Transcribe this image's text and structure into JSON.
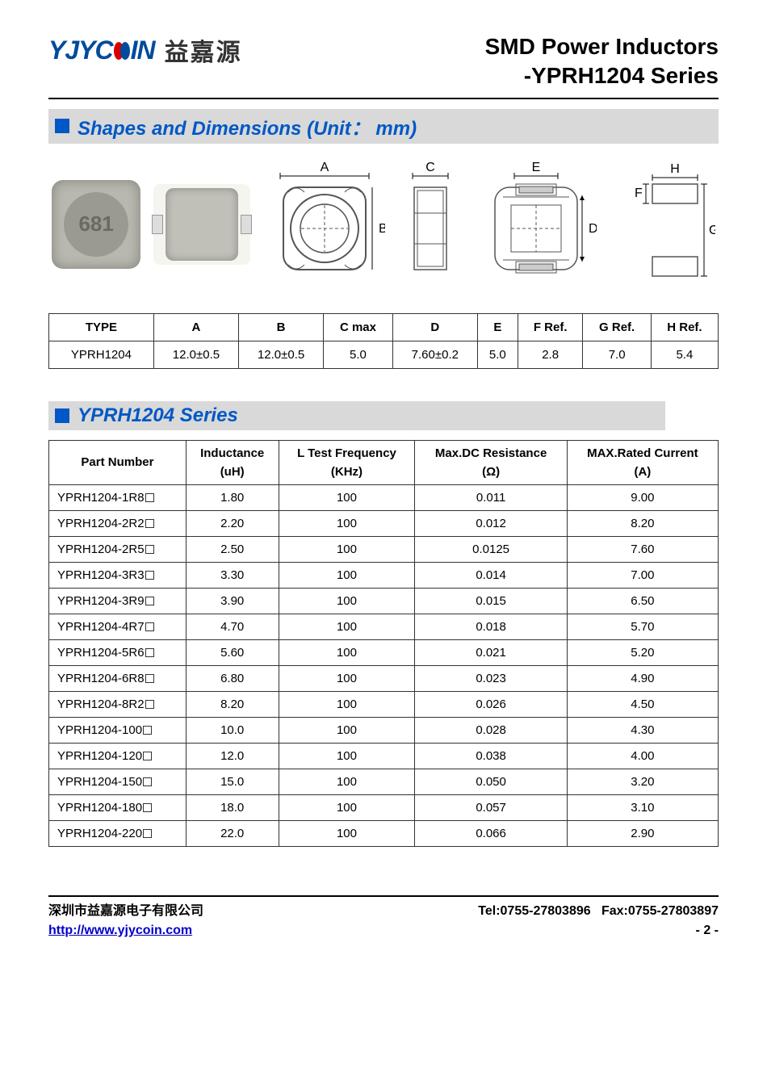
{
  "header": {
    "logo_en_1": "YJYC",
    "logo_en_2": "IN",
    "logo_cn": "益嘉源",
    "title_line1": "SMD Power Inductors",
    "title_line2": "-YPRH1204 Series"
  },
  "section1": {
    "title": "Shapes and Dimensions (Unit： mm)",
    "labels": {
      "A": "A",
      "B": "B",
      "C": "C",
      "D": "D",
      "E": "E",
      "F": "F",
      "G": "G",
      "H": "H"
    },
    "photo_text": "681"
  },
  "dim_table": {
    "headers": [
      "TYPE",
      "A",
      "B",
      "C max",
      "D",
      "E",
      "F Ref.",
      "G Ref.",
      "H Ref."
    ],
    "row": [
      "YPRH1204",
      "12.0±0.5",
      "12.0±0.5",
      "5.0",
      "7.60±0.2",
      "5.0",
      "2.8",
      "7.0",
      "5.4"
    ]
  },
  "section2": {
    "title": "YPRH1204 Series"
  },
  "series_table": {
    "headers": [
      {
        "l1": "Part Number",
        "l2": ""
      },
      {
        "l1": "Inductance",
        "l2": "(uH)"
      },
      {
        "l1": "L Test Frequency",
        "l2": "(KHz)"
      },
      {
        "l1": "Max.DC Resistance",
        "l2": "(Ω)"
      },
      {
        "l1": "MAX.Rated Current",
        "l2": "(A)"
      }
    ],
    "rows": [
      [
        "YPRH1204-1R8",
        "1.80",
        "100",
        "0.011",
        "9.00"
      ],
      [
        "YPRH1204-2R2",
        "2.20",
        "100",
        "0.012",
        "8.20"
      ],
      [
        "YPRH1204-2R5",
        "2.50",
        "100",
        "0.0125",
        "7.60"
      ],
      [
        "YPRH1204-3R3",
        "3.30",
        "100",
        "0.014",
        "7.00"
      ],
      [
        "YPRH1204-3R9",
        "3.90",
        "100",
        "0.015",
        "6.50"
      ],
      [
        "YPRH1204-4R7",
        "4.70",
        "100",
        "0.018",
        "5.70"
      ],
      [
        "YPRH1204-5R6",
        "5.60",
        "100",
        "0.021",
        "5.20"
      ],
      [
        "YPRH1204-6R8",
        "6.80",
        "100",
        "0.023",
        "4.90"
      ],
      [
        "YPRH1204-8R2",
        "8.20",
        "100",
        "0.026",
        "4.50"
      ],
      [
        "YPRH1204-100",
        "10.0",
        "100",
        "0.028",
        "4.30"
      ],
      [
        "YPRH1204-120",
        "12.0",
        "100",
        "0.038",
        "4.00"
      ],
      [
        "YPRH1204-150",
        "15.0",
        "100",
        "0.050",
        "3.20"
      ],
      [
        "YPRH1204-180",
        "18.0",
        "100",
        "0.057",
        "3.10"
      ],
      [
        "YPRH1204-220",
        "22.0",
        "100",
        "0.066",
        "2.90"
      ]
    ]
  },
  "footer": {
    "company_cn": "深圳市益嘉源电子有限公司",
    "tel": "Tel:0755-27803896",
    "fax": "Fax:0755-27803897",
    "url": "http://www.yjycoin.com",
    "page": "- 2 -"
  },
  "colors": {
    "accent_blue": "#0058c6",
    "logo_blue": "#004b9b",
    "logo_red": "#d80000",
    "header_bg": "#d9d9d9",
    "border": "#333333"
  }
}
